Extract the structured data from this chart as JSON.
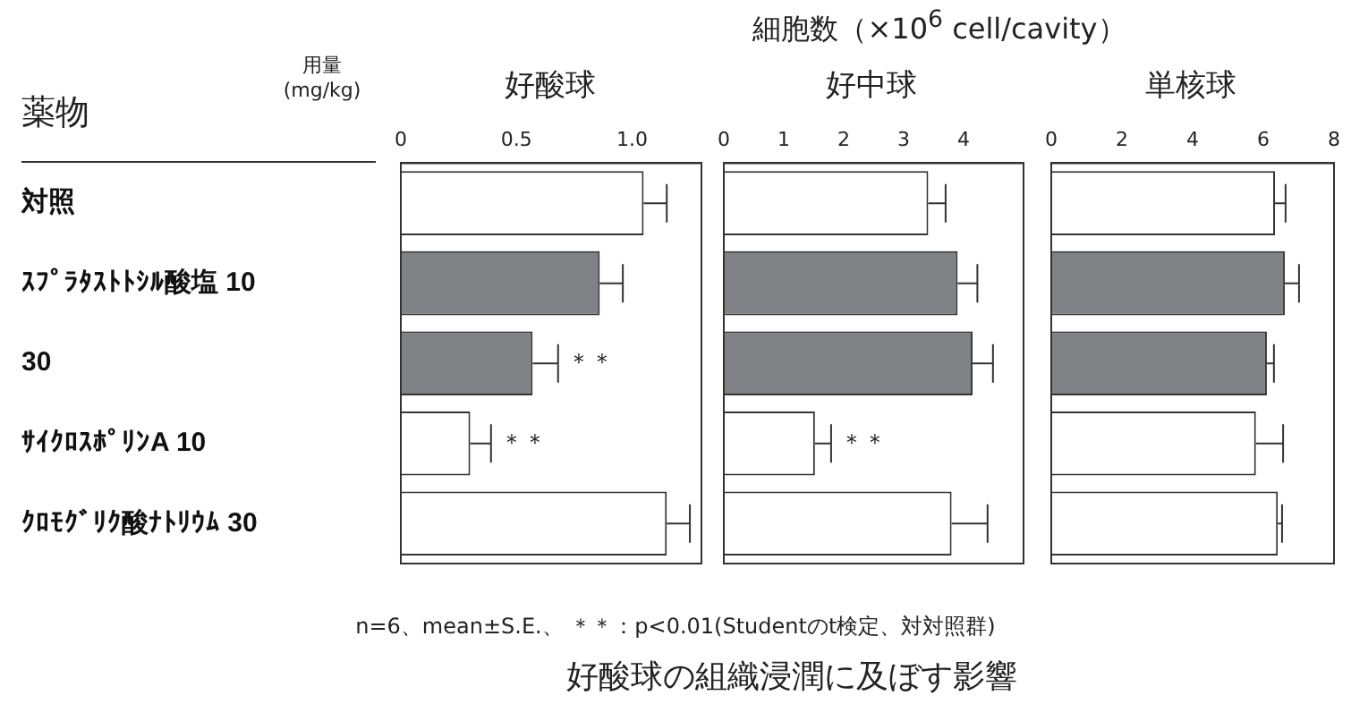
{
  "chart_data": [
    {
      "type": "bar",
      "orientation": "horizontal",
      "title": "好酸球",
      "ylabel": "薬物",
      "categories": [
        "対照",
        "ｽﾌﾟﾗﾀｽﾄﾄｼﾙ酸塩 10",
        "30",
        "ｻｲｸﾛｽﾎﾟﾘﾝA 10",
        "ｸﾛﾓｸﾞﾘｸ酸ﾅﾄﾘｳﾑ 30"
      ],
      "values": [
        1.05,
        0.86,
        0.57,
        0.3,
        1.15
      ],
      "errors": [
        0.1,
        0.1,
        0.11,
        0.09,
        0.1
      ],
      "colors": [
        "#ffffff",
        "#808285",
        "#808285",
        "#ffffff",
        "#ffffff"
      ],
      "xlim": [
        0,
        1.3
      ],
      "xticks": [
        {
          "value": 0,
          "label": "0"
        },
        {
          "value": 0.5,
          "label": "0.5"
        },
        {
          "value": 1,
          "label": "1.0"
        }
      ],
      "grid": false,
      "legend": false,
      "annotations": [
        "細胞数（×10$^{6}$ cell/cavity）",
        "用量 (mg/kg)",
        "n=6、mean±S.E.、 ＊＊：p<0.01(Studentのt検定、対対照群)",
        "好酸球の組織浸潤に及ぼす影響",
        {
          "text": "＊＊",
          "x": 0.68,
          "y": "30"
        },
        {
          "text": "＊＊",
          "x": 0.39,
          "y": "ｻｲｸﾛｽﾎﾟﾘﾝA 10"
        }
      ]
    },
    {
      "type": "bar",
      "orientation": "horizontal",
      "title": "好中球",
      "categories": [
        "対照",
        "ｽﾌﾟﾗﾀｽﾄﾄｼﾙ酸塩 10",
        "30",
        "ｻｲｸﾛｽﾎﾟﾘﾝA 10",
        "ｸﾛﾓｸﾞﾘｸ酸ﾅﾄﾘｳﾑ 30"
      ],
      "values": [
        3.41,
        3.9,
        4.15,
        1.52,
        3.8
      ],
      "errors": [
        0.29,
        0.33,
        0.34,
        0.27,
        0.6
      ],
      "colors": [
        "#ffffff",
        "#808285",
        "#808285",
        "#ffffff",
        "#ffffff"
      ],
      "xlim": [
        0,
        5
      ],
      "xticks": [
        0,
        1,
        2,
        3,
        4
      ],
      "grid": false,
      "legend": false,
      "tick_labels": "x",
      "annotations": [
        {
          "text": "＊＊",
          "x": 1.79,
          "y": "ｻｲｸﾛｽﾎﾟﾘﾝA 10"
        }
      ]
    },
    {
      "type": "bar",
      "orientation": "horizontal",
      "title": "単核球",
      "categories": [
        "対照",
        "ｽﾌﾟﾗﾀｽﾄﾄｼﾙ酸塩 10",
        "30",
        "ｻｲｸﾛｽﾎﾟﾘﾝA 10",
        "ｸﾛﾓｸﾞﾘｸ酸ﾅﾄﾘｳﾑ 30"
      ],
      "values": [
        6.33,
        6.61,
        6.1,
        5.79,
        6.41
      ],
      "errors": [
        0.3,
        0.4,
        0.2,
        0.77,
        0.12
      ],
      "colors": [
        "#ffffff",
        "#808285",
        "#808285",
        "#ffffff",
        "#ffffff"
      ],
      "xlim": [
        0,
        8
      ],
      "xticks": [
        0,
        2,
        4,
        6,
        8
      ],
      "grid": false,
      "legend": false,
      "tick_labels": "x"
    }
  ]
}
